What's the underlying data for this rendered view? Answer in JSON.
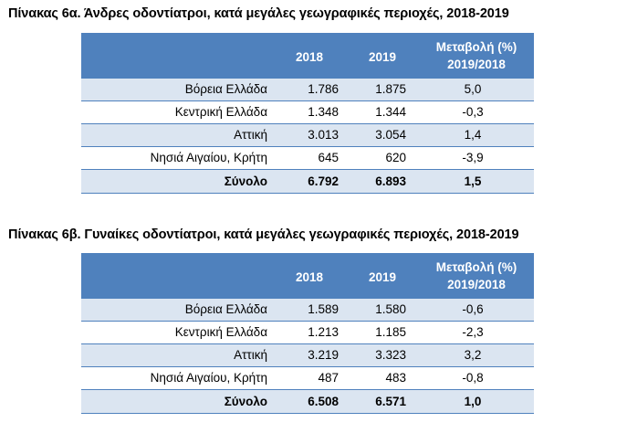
{
  "table_a": {
    "title": "Πίνακας 6α. Άνδρες οδοντίατροι, κατά μεγάλες γεωγραφικές περιοχές, 2018-2019",
    "header": {
      "region": "",
      "y2018": "2018",
      "y2019": "2019",
      "change_line1": "Μεταβολή (%)",
      "change_line2": "2019/2018"
    },
    "rows": [
      {
        "region": "Βόρεια Ελλάδα",
        "y2018": "1.786",
        "y2019": "1.875",
        "change": "5,0"
      },
      {
        "region": "Κεντρική Ελλάδα",
        "y2018": "1.348",
        "y2019": "1.344",
        "change": "-0,3"
      },
      {
        "region": "Αττική",
        "y2018": "3.013",
        "y2019": "3.054",
        "change": "1,4"
      },
      {
        "region": "Νησιά Αιγαίου, Κρήτη",
        "y2018": "645",
        "y2019": "620",
        "change": "-3,9"
      }
    ],
    "total": {
      "region": "Σύνολο",
      "y2018": "6.792",
      "y2019": "6.893",
      "change": "1,5"
    }
  },
  "table_b": {
    "title": "Πίνακας 6β. Γυναίκες οδοντίατροι, κατά μεγάλες γεωγραφικές περιοχές, 2018-2019",
    "header": {
      "region": "",
      "y2018": "2018",
      "y2019": "2019",
      "change_line1": "Μεταβολή (%)",
      "change_line2": "2019/2018"
    },
    "rows": [
      {
        "region": "Βόρεια Ελλάδα",
        "y2018": "1.589",
        "y2019": "1.580",
        "change": "-0,6"
      },
      {
        "region": "Κεντρική Ελλάδα",
        "y2018": "1.213",
        "y2019": "1.185",
        "change": "-2,3"
      },
      {
        "region": "Αττική",
        "y2018": "3.219",
        "y2019": "3.323",
        "change": "3,2"
      },
      {
        "region": "Νησιά Αιγαίου, Κρήτη",
        "y2018": "487",
        "y2019": "483",
        "change": "-0,8"
      }
    ],
    "total": {
      "region": "Σύνολο",
      "y2018": "6.508",
      "y2019": "6.571",
      "change": "1,0"
    }
  },
  "colors": {
    "header_bg": "#4f81bd",
    "header_text": "#ffffff",
    "shaded_row": "#dbe5f1",
    "plain_row": "#ffffff",
    "rule": "#4f81bd"
  }
}
